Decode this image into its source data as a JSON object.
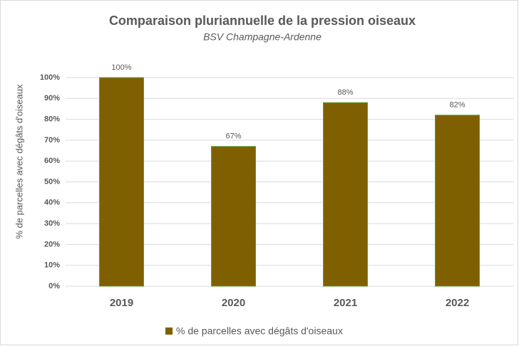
{
  "chart_data": {
    "type": "bar",
    "title": "Comparaison pluriannuelle de la pression oiseaux",
    "subtitle": "BSV Champagne-Ardenne",
    "y_label": "% de parcelles avec dégâts d'oiseaux",
    "categories": [
      "2019",
      "2020",
      "2021",
      "2022"
    ],
    "series": [
      {
        "name": "% de parcelles avec dégâts d'oiseaux",
        "color": "#7f6000",
        "values": [
          100,
          67,
          88,
          82
        ],
        "value_labels": [
          "100%",
          "67%",
          "88%",
          "82%"
        ]
      }
    ],
    "ylim": [
      0,
      100
    ],
    "yticks": [
      {
        "value": 0,
        "label": "0%"
      },
      {
        "value": 10,
        "label": "10%"
      },
      {
        "value": 20,
        "label": "20%"
      },
      {
        "value": 30,
        "label": "30%"
      },
      {
        "value": 40,
        "label": "40%"
      },
      {
        "value": 50,
        "label": "50%"
      },
      {
        "value": 60,
        "label": "60%"
      },
      {
        "value": 70,
        "label": "70%"
      },
      {
        "value": 80,
        "label": "80%"
      },
      {
        "value": 90,
        "label": "90%"
      },
      {
        "value": 100,
        "label": "100%"
      }
    ],
    "grid": true,
    "legend": "bottom"
  }
}
